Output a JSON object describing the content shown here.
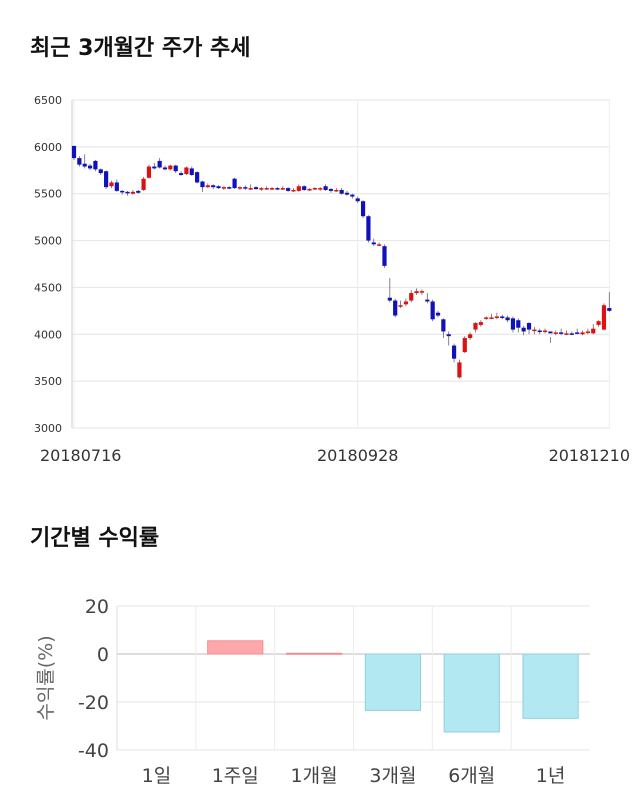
{
  "section_titles": {
    "price_trend": "최근 3개월간 주가 추세",
    "returns": "기간별 수익률"
  },
  "chart_data": [
    {
      "type": "candlestick",
      "title": "최근 3개월간 주가 추세",
      "ylim": [
        3000,
        6500
      ],
      "y_ticks": [
        3000,
        3500,
        4000,
        4500,
        5000,
        5500,
        6000,
        6500
      ],
      "x_tick_labels": [
        "20180716",
        "20180928",
        "20181210"
      ],
      "grid": true,
      "colors": {
        "up": "#dd1111",
        "down": "#1111bb"
      },
      "candles": [
        [
          6010,
          5880,
          6010,
          5860
        ],
        [
          5880,
          5810,
          5900,
          5790
        ],
        [
          5820,
          5790,
          5920,
          5770
        ],
        [
          5800,
          5770,
          5820,
          5750
        ],
        [
          5850,
          5760,
          5860,
          5740
        ],
        [
          5760,
          5720,
          5770,
          5700
        ],
        [
          5740,
          5570,
          5750,
          5550
        ],
        [
          5580,
          5620,
          5640,
          5560
        ],
        [
          5620,
          5530,
          5650,
          5520
        ],
        [
          5530,
          5520,
          5540,
          5490
        ],
        [
          5520,
          5510,
          5530,
          5480
        ],
        [
          5500,
          5520,
          5540,
          5490
        ],
        [
          5530,
          5510,
          5540,
          5500
        ],
        [
          5540,
          5660,
          5680,
          5530
        ],
        [
          5670,
          5790,
          5810,
          5660
        ],
        [
          5790,
          5770,
          5830,
          5760
        ],
        [
          5850,
          5780,
          5880,
          5770
        ],
        [
          5780,
          5760,
          5800,
          5750
        ],
        [
          5760,
          5800,
          5810,
          5750
        ],
        [
          5800,
          5740,
          5810,
          5720
        ],
        [
          5720,
          5700,
          5740,
          5690
        ],
        [
          5710,
          5780,
          5790,
          5700
        ],
        [
          5770,
          5700,
          5790,
          5690
        ],
        [
          5730,
          5620,
          5740,
          5610
        ],
        [
          5630,
          5570,
          5640,
          5520
        ],
        [
          5570,
          5590,
          5610,
          5560
        ],
        [
          5590,
          5570,
          5600,
          5550
        ],
        [
          5580,
          5560,
          5590,
          5550
        ],
        [
          5560,
          5570,
          5580,
          5540
        ],
        [
          5570,
          5560,
          5580,
          5550
        ],
        [
          5660,
          5560,
          5670,
          5550
        ],
        [
          5560,
          5570,
          5580,
          5540
        ],
        [
          5570,
          5560,
          5590,
          5540
        ],
        [
          5560,
          5560,
          5600,
          5540
        ],
        [
          5570,
          5550,
          5580,
          5540
        ],
        [
          5550,
          5560,
          5570,
          5530
        ],
        [
          5560,
          5560,
          5580,
          5540
        ],
        [
          5560,
          5560,
          5570,
          5540
        ],
        [
          5560,
          5550,
          5570,
          5540
        ],
        [
          5550,
          5560,
          5580,
          5540
        ],
        [
          5560,
          5530,
          5570,
          5520
        ],
        [
          5530,
          5540,
          5560,
          5520
        ],
        [
          5530,
          5580,
          5600,
          5520
        ],
        [
          5580,
          5540,
          5590,
          5530
        ],
        [
          5540,
          5550,
          5560,
          5530
        ],
        [
          5550,
          5560,
          5570,
          5540
        ],
        [
          5560,
          5560,
          5570,
          5530
        ],
        [
          5580,
          5540,
          5600,
          5530
        ],
        [
          5550,
          5530,
          5560,
          5510
        ],
        [
          5530,
          5540,
          5560,
          5520
        ],
        [
          5540,
          5500,
          5560,
          5490
        ],
        [
          5510,
          5490,
          5530,
          5480
        ],
        [
          5490,
          5470,
          5500,
          5450
        ],
        [
          5450,
          5420,
          5470,
          5400
        ],
        [
          5420,
          5260,
          5430,
          5240
        ],
        [
          5260,
          5000,
          5270,
          4980
        ],
        [
          4980,
          4960,
          5020,
          4940
        ],
        [
          4960,
          4960,
          4980,
          4940
        ],
        [
          4940,
          4730,
          4960,
          4710
        ],
        [
          4390,
          4360,
          4600,
          4340
        ],
        [
          4360,
          4200,
          4380,
          4180
        ],
        [
          4300,
          4310,
          4360,
          4280
        ],
        [
          4320,
          4350,
          4380,
          4300
        ],
        [
          4360,
          4440,
          4470,
          4340
        ],
        [
          4440,
          4460,
          4490,
          4420
        ],
        [
          4450,
          4460,
          4480,
          4420
        ],
        [
          4370,
          4350,
          4440,
          4330
        ],
        [
          4350,
          4160,
          4370,
          4140
        ],
        [
          4230,
          4200,
          4250,
          4180
        ],
        [
          4160,
          4030,
          4170,
          3960
        ],
        [
          4000,
          3980,
          4030,
          3880
        ],
        [
          3880,
          3740,
          3900,
          3700
        ],
        [
          3540,
          3700,
          3730,
          3530
        ],
        [
          3810,
          3960,
          3980,
          3800
        ],
        [
          3960,
          4000,
          4020,
          3940
        ],
        [
          4050,
          4120,
          4130,
          4020
        ],
        [
          4100,
          4130,
          4150,
          4080
        ],
        [
          4170,
          4180,
          4190,
          4150
        ],
        [
          4180,
          4180,
          4220,
          4160
        ],
        [
          4180,
          4190,
          4230,
          4160
        ],
        [
          4190,
          4180,
          4210,
          4160
        ],
        [
          4180,
          4150,
          4200,
          4130
        ],
        [
          4170,
          4050,
          4190,
          4020
        ],
        [
          4150,
          4070,
          4170,
          4020
        ],
        [
          4070,
          4030,
          4090,
          3990
        ],
        [
          4120,
          4050,
          4130,
          4000
        ],
        [
          4050,
          4050,
          4080,
          4000
        ],
        [
          4040,
          4030,
          4060,
          4000
        ],
        [
          4040,
          4040,
          4060,
          4010
        ],
        [
          4030,
          4010,
          3970,
          3910
        ],
        [
          4010,
          4020,
          4040,
          3990
        ],
        [
          4020,
          4010,
          4060,
          3990
        ],
        [
          4010,
          4010,
          4040,
          3990
        ],
        [
          4010,
          4000,
          4030,
          3990
        ],
        [
          4020,
          4010,
          4060,
          4000
        ],
        [
          4000,
          4020,
          4040,
          3990
        ],
        [
          4020,
          4030,
          4060,
          4000
        ],
        [
          4010,
          4060,
          4110,
          4000
        ],
        [
          4100,
          4140,
          4150,
          4080
        ],
        [
          4050,
          4310,
          4330,
          4040
        ],
        [
          4280,
          4250,
          4450,
          4240
        ]
      ]
    },
    {
      "type": "bar",
      "title": "기간별 수익률",
      "ylabel": "수익률(%)",
      "ylim": [
        -40,
        20
      ],
      "y_ticks": [
        -40,
        -20,
        0,
        20
      ],
      "grid": true,
      "categories": [
        "1일",
        "1주일",
        "1개월",
        "3개월",
        "6개월",
        "1년"
      ],
      "values": [
        0,
        5.5,
        0.3,
        -23.5,
        -32.5,
        -26.8
      ],
      "colors": {
        "positive": "#ffa8ab",
        "negative": "#b1e8f1",
        "positive_edge": "#f48a8e",
        "negative_edge": "#8fcfdc"
      }
    }
  ]
}
